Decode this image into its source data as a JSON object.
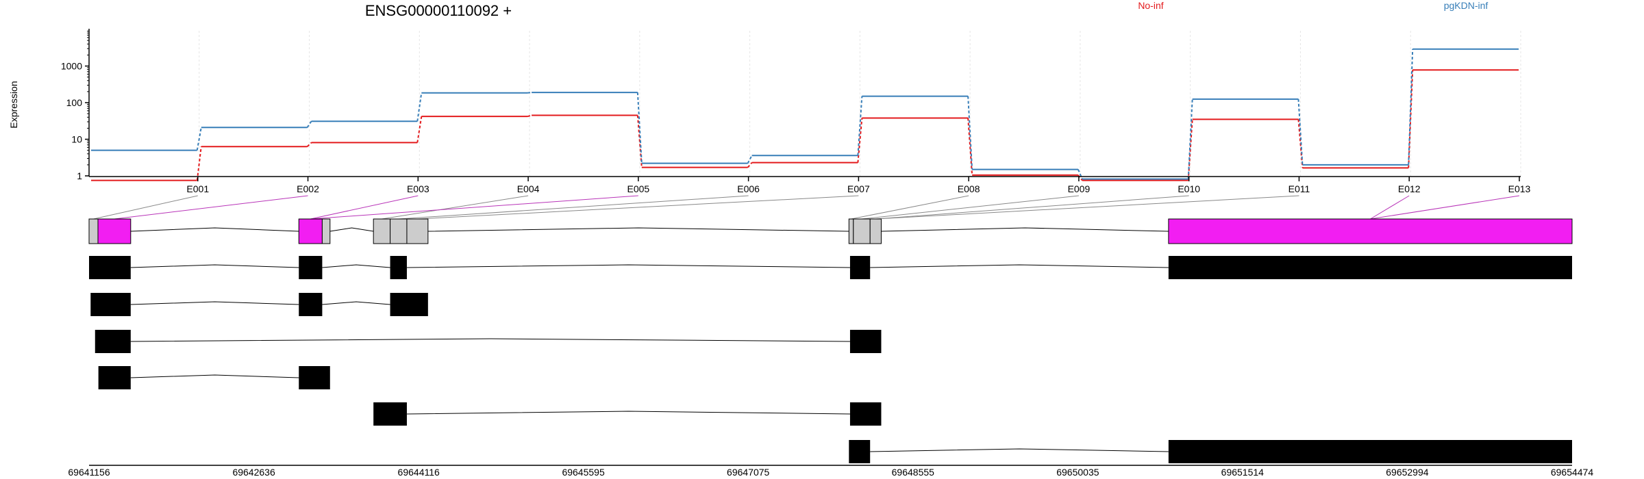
{
  "chart_data": {
    "type": "line",
    "title": "ENSG00000110092 +",
    "ylabel": "Expression",
    "y_scale": "log",
    "yticks": [
      1,
      10,
      100,
      1000
    ],
    "categories": [
      "E001",
      "E002",
      "E003",
      "E004",
      "E005",
      "E006",
      "E007",
      "E008",
      "E009",
      "E010",
      "E011",
      "E012",
      "E013"
    ],
    "series": [
      {
        "name": "No-inf",
        "color": "#e31a1c",
        "values": [
          0.75,
          6.3,
          8.1,
          42,
          45,
          1.7,
          2.3,
          38,
          1.05,
          0.75,
          35,
          1.65,
          780
        ]
      },
      {
        "name": "pgKDN-inf",
        "color": "#377eb8",
        "values": [
          5.0,
          21,
          31,
          185,
          190,
          2.2,
          3.6,
          150,
          1.5,
          0.82,
          125,
          2.0,
          2900
        ]
      }
    ],
    "genomic_axis": {
      "ticks": [
        "69641156",
        "69642636",
        "69644116",
        "69645595",
        "69647075",
        "69648555",
        "69650035",
        "69651514",
        "69652994",
        "69654474"
      ]
    },
    "exon_bins": [
      {
        "id": "E001",
        "start": 69641156,
        "end": 69641236,
        "type": "flank"
      },
      {
        "id": "E002",
        "start": 69641236,
        "end": 69641530,
        "type": "highlight"
      },
      {
        "id": "E003",
        "start": 69643040,
        "end": 69643250,
        "type": "highlight"
      },
      {
        "id": "E004",
        "start": 69643250,
        "end": 69643320,
        "type": "gray"
      },
      {
        "id": "E005",
        "start": 69643710,
        "end": 69643860,
        "type": "gray"
      },
      {
        "id": "E006",
        "start": 69643860,
        "end": 69644010,
        "type": "gray"
      },
      {
        "id": "E007",
        "start": 69644010,
        "end": 69644200,
        "type": "gray"
      },
      {
        "id": "E008",
        "start": 69647980,
        "end": 69648020,
        "type": "gray"
      },
      {
        "id": "E009",
        "start": 69648020,
        "end": 69648170,
        "type": "gray"
      },
      {
        "id": "E010",
        "start": 69648170,
        "end": 69648270,
        "type": "gray"
      },
      {
        "id": "E011",
        "start": 69650850,
        "end": 69654474,
        "type": "highlight"
      }
    ],
    "exon_label_connections": [
      {
        "label": "E001",
        "bin": 0,
        "color": "#888888"
      },
      {
        "label": "E002",
        "bin": 1,
        "color": "#b833b8"
      },
      {
        "label": "E003",
        "bin": 2,
        "color": "#b833b8"
      },
      {
        "label": "E004",
        "bin": 4,
        "color": "#888888"
      },
      {
        "label": "E005",
        "bin": 2,
        "color": "#b833b8"
      },
      {
        "label": "E006",
        "bin": 5,
        "color": "#888888"
      },
      {
        "label": "E007",
        "bin": 6,
        "color": "#888888"
      },
      {
        "label": "E008",
        "bin": 7,
        "color": "#888888"
      },
      {
        "label": "E009",
        "bin": 8,
        "color": "#888888"
      },
      {
        "label": "E010",
        "bin": 9,
        "color": "#888888"
      },
      {
        "label": "E011",
        "bin": 9,
        "color": "#888888"
      },
      {
        "label": "E012",
        "bin": 10,
        "color": "#b833b8"
      },
      {
        "label": "E013",
        "bin": 10,
        "color": "#b833b8"
      }
    ],
    "transcripts": [
      [
        [
          69641156,
          69641530
        ],
        [
          69643040,
          69643250
        ],
        [
          69643860,
          69644010
        ],
        [
          69647990,
          69648170
        ],
        [
          69650850,
          69654474
        ]
      ],
      [
        [
          69641170,
          69641530
        ],
        [
          69643040,
          69643250
        ],
        [
          69643860,
          69644200
        ]
      ],
      [
        [
          69641210,
          69641530
        ],
        [
          69647990,
          69648270
        ]
      ],
      [
        [
          69641240,
          69641530
        ],
        [
          69643040,
          69643320
        ]
      ],
      [
        [
          69643710,
          69644010
        ],
        [
          69647990,
          69648270
        ]
      ],
      [
        [
          69647980,
          69648170
        ],
        [
          69650850,
          69654474
        ]
      ]
    ],
    "colors": {
      "highlight_exon": "#f21ef2",
      "gray_exon": "#cccccc",
      "transcript_exon": "#000000",
      "connector_gray": "#888888",
      "connector_magenta": "#b833b8"
    }
  }
}
